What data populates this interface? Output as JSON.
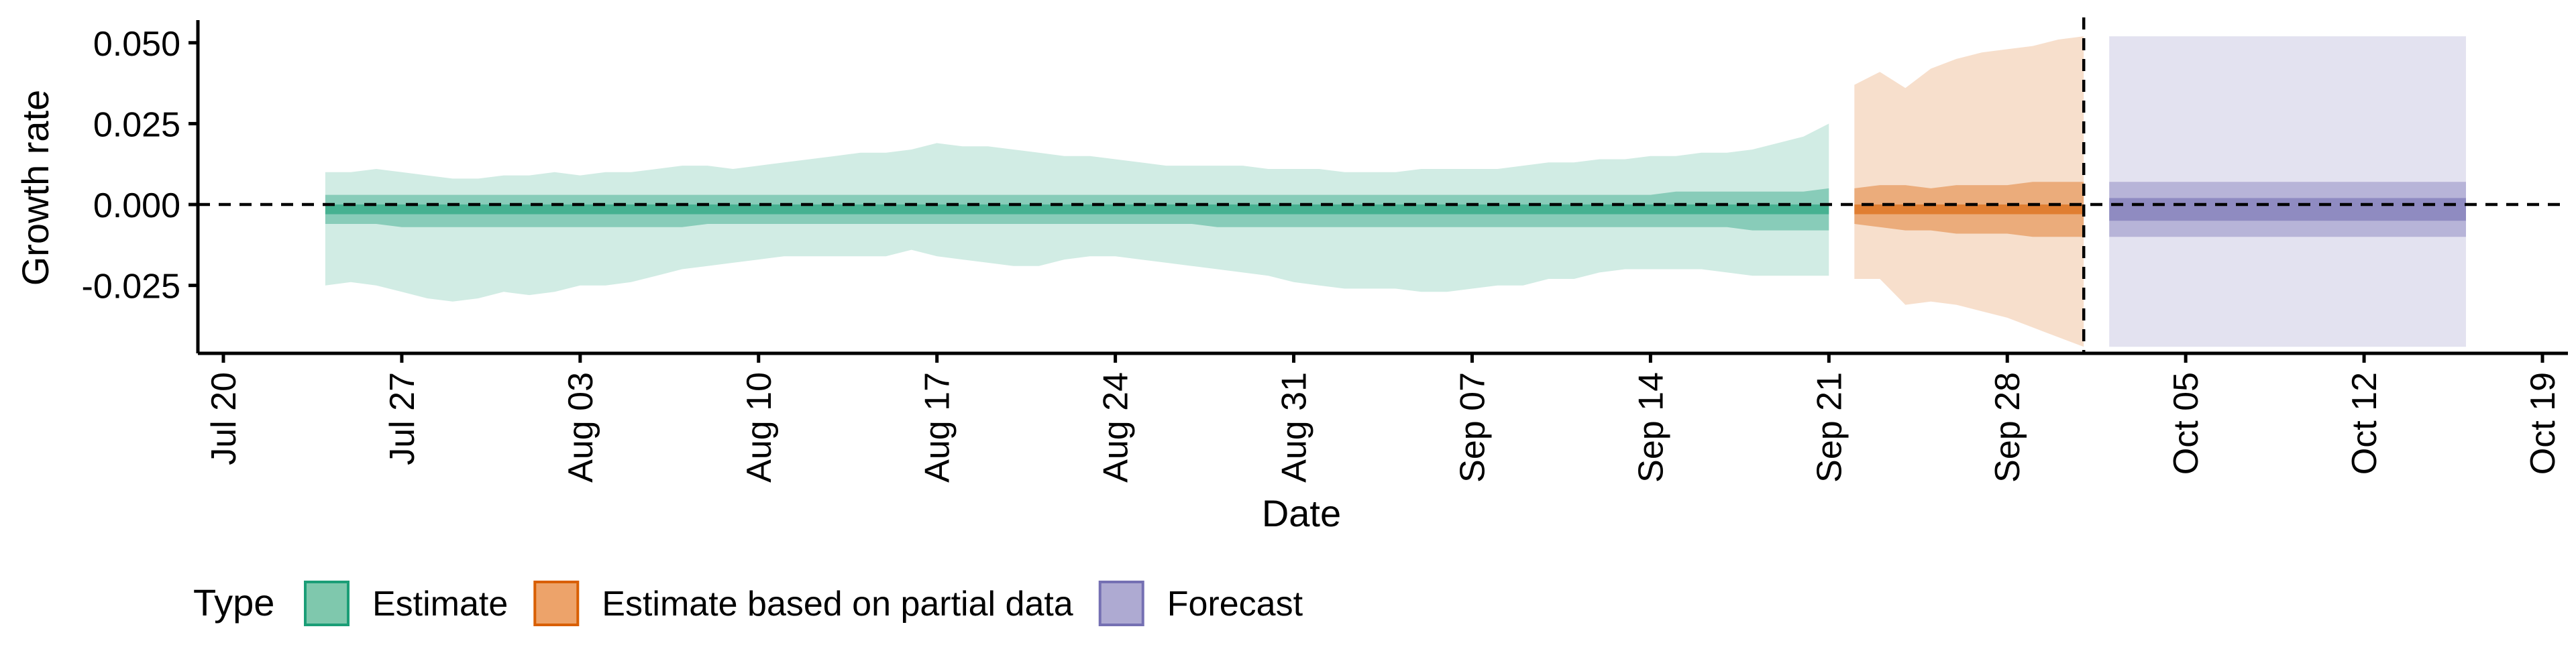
{
  "chart_data": {
    "type": "area",
    "xlabel": "Date",
    "ylabel": "Growth rate",
    "xlim": [
      "2020-07-19",
      "2020-10-20"
    ],
    "ylim": [
      -0.046,
      0.057
    ],
    "x_ticks": [
      "2020-07-20",
      "2020-07-27",
      "2020-08-03",
      "2020-08-10",
      "2020-08-17",
      "2020-08-24",
      "2020-08-31",
      "2020-09-07",
      "2020-09-14",
      "2020-09-21",
      "2020-09-28",
      "2020-10-05",
      "2020-10-12",
      "2020-10-19"
    ],
    "x_tick_labels": [
      "Jul 20",
      "Jul 27",
      "Aug 03",
      "Aug 10",
      "Aug 17",
      "Aug 24",
      "Aug 31",
      "Sep 07",
      "Sep 14",
      "Sep 21",
      "Sep 28",
      "Oct 05",
      "Oct 12",
      "Oct 19"
    ],
    "y_ticks": [
      -0.025,
      0.0,
      0.025,
      0.05
    ],
    "y_tick_labels": [
      "-0.025",
      "0.000",
      "0.025",
      "0.050"
    ],
    "reference_lines": {
      "horizontal_y": 0.0,
      "vertical_x": "2020-10-01"
    },
    "grid": false,
    "legend": {
      "position": "bottom-left",
      "title": "Type",
      "entries": [
        {
          "label": "Estimate",
          "fill": "#7fc8ad",
          "stroke": "#1b9e77"
        },
        {
          "label": "Estimate based on partial data",
          "fill": "#eda36a",
          "stroke": "#d95f02"
        },
        {
          "label": "Forecast",
          "fill": "#aeaad2",
          "stroke": "#7570b3"
        }
      ]
    },
    "band_opacity": {
      "outer_90": 0.2,
      "mid_50": 0.4,
      "inner_20": 0.6
    },
    "series": [
      {
        "name": "Estimate",
        "color": "#1b9e77",
        "x": [
          "2020-07-24",
          "2020-07-25",
          "2020-07-26",
          "2020-07-27",
          "2020-07-28",
          "2020-07-29",
          "2020-07-30",
          "2020-07-31",
          "2020-08-01",
          "2020-08-02",
          "2020-08-03",
          "2020-08-04",
          "2020-08-05",
          "2020-08-06",
          "2020-08-07",
          "2020-08-08",
          "2020-08-09",
          "2020-08-10",
          "2020-08-11",
          "2020-08-12",
          "2020-08-13",
          "2020-08-14",
          "2020-08-15",
          "2020-08-16",
          "2020-08-17",
          "2020-08-18",
          "2020-08-19",
          "2020-08-20",
          "2020-08-21",
          "2020-08-22",
          "2020-08-23",
          "2020-08-24",
          "2020-08-25",
          "2020-08-26",
          "2020-08-27",
          "2020-08-28",
          "2020-08-29",
          "2020-08-30",
          "2020-08-31",
          "2020-09-01",
          "2020-09-02",
          "2020-09-03",
          "2020-09-04",
          "2020-09-05",
          "2020-09-06",
          "2020-09-07",
          "2020-09-08",
          "2020-09-09",
          "2020-09-10",
          "2020-09-11",
          "2020-09-12",
          "2020-09-13",
          "2020-09-14",
          "2020-09-15",
          "2020-09-16",
          "2020-09-17",
          "2020-09-18",
          "2020-09-19",
          "2020-09-20",
          "2020-09-21"
        ],
        "lower_90": [
          -0.025,
          -0.024,
          -0.025,
          -0.027,
          -0.029,
          -0.03,
          -0.029,
          -0.027,
          -0.028,
          -0.027,
          -0.025,
          -0.025,
          -0.024,
          -0.022,
          -0.02,
          -0.019,
          -0.018,
          -0.017,
          -0.016,
          -0.016,
          -0.016,
          -0.016,
          -0.016,
          -0.014,
          -0.016,
          -0.017,
          -0.018,
          -0.019,
          -0.019,
          -0.017,
          -0.016,
          -0.016,
          -0.017,
          -0.018,
          -0.019,
          -0.02,
          -0.021,
          -0.022,
          -0.024,
          -0.025,
          -0.026,
          -0.026,
          -0.026,
          -0.027,
          -0.027,
          -0.026,
          -0.025,
          -0.025,
          -0.023,
          -0.023,
          -0.021,
          -0.02,
          -0.02,
          -0.02,
          -0.02,
          -0.021,
          -0.022,
          -0.022,
          -0.022,
          -0.022
        ],
        "upper_90": [
          0.01,
          0.01,
          0.011,
          0.01,
          0.009,
          0.008,
          0.008,
          0.009,
          0.009,
          0.01,
          0.009,
          0.01,
          0.01,
          0.011,
          0.012,
          0.012,
          0.011,
          0.012,
          0.013,
          0.014,
          0.015,
          0.016,
          0.016,
          0.017,
          0.019,
          0.018,
          0.018,
          0.017,
          0.016,
          0.015,
          0.015,
          0.014,
          0.013,
          0.012,
          0.012,
          0.012,
          0.012,
          0.011,
          0.011,
          0.011,
          0.01,
          0.01,
          0.01,
          0.011,
          0.011,
          0.011,
          0.011,
          0.012,
          0.013,
          0.013,
          0.014,
          0.014,
          0.015,
          0.015,
          0.016,
          0.016,
          0.017,
          0.019,
          0.021,
          0.025
        ],
        "lower_50": [
          -0.006,
          -0.006,
          -0.006,
          -0.007,
          -0.007,
          -0.007,
          -0.007,
          -0.007,
          -0.007,
          -0.007,
          -0.007,
          -0.007,
          -0.007,
          -0.007,
          -0.007,
          -0.006,
          -0.006,
          -0.006,
          -0.006,
          -0.006,
          -0.006,
          -0.006,
          -0.006,
          -0.006,
          -0.006,
          -0.006,
          -0.006,
          -0.006,
          -0.006,
          -0.006,
          -0.006,
          -0.006,
          -0.006,
          -0.006,
          -0.006,
          -0.007,
          -0.007,
          -0.007,
          -0.007,
          -0.007,
          -0.007,
          -0.007,
          -0.007,
          -0.007,
          -0.007,
          -0.007,
          -0.007,
          -0.007,
          -0.007,
          -0.007,
          -0.007,
          -0.007,
          -0.007,
          -0.007,
          -0.007,
          -0.007,
          -0.008,
          -0.008,
          -0.008,
          -0.008
        ],
        "upper_50": [
          0.003,
          0.003,
          0.003,
          0.003,
          0.003,
          0.003,
          0.003,
          0.003,
          0.003,
          0.003,
          0.003,
          0.003,
          0.003,
          0.003,
          0.003,
          0.003,
          0.003,
          0.003,
          0.003,
          0.003,
          0.003,
          0.003,
          0.003,
          0.003,
          0.003,
          0.003,
          0.003,
          0.003,
          0.003,
          0.003,
          0.003,
          0.003,
          0.003,
          0.003,
          0.003,
          0.003,
          0.003,
          0.003,
          0.003,
          0.003,
          0.003,
          0.003,
          0.003,
          0.003,
          0.003,
          0.003,
          0.003,
          0.003,
          0.003,
          0.003,
          0.003,
          0.003,
          0.003,
          0.004,
          0.004,
          0.004,
          0.004,
          0.004,
          0.004,
          0.005
        ],
        "lower_20": [
          -0.003,
          -0.003,
          -0.003,
          -0.003,
          -0.003,
          -0.003,
          -0.003,
          -0.003,
          -0.003,
          -0.003,
          -0.003,
          -0.003,
          -0.003,
          -0.003,
          -0.003,
          -0.003,
          -0.003,
          -0.003,
          -0.003,
          -0.003,
          -0.003,
          -0.003,
          -0.003,
          -0.003,
          -0.003,
          -0.003,
          -0.003,
          -0.003,
          -0.003,
          -0.003,
          -0.003,
          -0.003,
          -0.003,
          -0.003,
          -0.003,
          -0.003,
          -0.003,
          -0.003,
          -0.003,
          -0.003,
          -0.003,
          -0.003,
          -0.003,
          -0.003,
          -0.003,
          -0.003,
          -0.003,
          -0.003,
          -0.003,
          -0.003,
          -0.003,
          -0.003,
          -0.003,
          -0.003,
          -0.003,
          -0.003,
          -0.003,
          -0.003,
          -0.003,
          -0.003
        ],
        "upper_20": [
          0.0,
          0.0,
          0.0,
          0.0,
          0.0,
          0.0,
          0.0,
          0.0,
          0.0,
          0.0,
          0.0,
          0.0,
          0.0,
          0.0,
          0.0,
          0.0,
          0.0,
          0.0,
          0.0,
          0.0,
          0.0,
          0.0,
          0.0,
          0.0,
          0.0,
          0.0,
          0.0,
          0.0,
          0.0,
          0.0,
          0.0,
          0.0,
          0.0,
          0.0,
          0.0,
          0.0,
          0.0,
          0.0,
          0.0,
          0.0,
          0.0,
          0.0,
          0.0,
          0.0,
          0.0,
          0.0,
          0.0,
          0.0,
          0.0,
          0.0,
          0.0,
          0.0,
          0.0,
          0.0,
          0.0,
          0.0,
          0.0,
          0.0,
          0.0,
          0.0
        ]
      },
      {
        "name": "Estimate based on partial data",
        "color": "#d95f02",
        "x": [
          "2020-09-22",
          "2020-09-23",
          "2020-09-24",
          "2020-09-25",
          "2020-09-26",
          "2020-09-27",
          "2020-09-28",
          "2020-09-29",
          "2020-09-30",
          "2020-10-01"
        ],
        "lower_90": [
          -0.023,
          -0.023,
          -0.031,
          -0.03,
          -0.031,
          -0.033,
          -0.035,
          -0.038,
          -0.041,
          -0.044
        ],
        "upper_90": [
          0.037,
          0.041,
          0.036,
          0.042,
          0.045,
          0.047,
          0.048,
          0.049,
          0.051,
          0.052
        ],
        "lower_50": [
          -0.006,
          -0.007,
          -0.008,
          -0.008,
          -0.009,
          -0.009,
          -0.009,
          -0.01,
          -0.01,
          -0.01
        ],
        "upper_50": [
          0.005,
          0.006,
          0.006,
          0.005,
          0.006,
          0.006,
          0.006,
          0.007,
          0.007,
          0.007
        ],
        "lower_20": [
          -0.003,
          -0.003,
          -0.003,
          -0.003,
          -0.003,
          -0.003,
          -0.003,
          -0.003,
          -0.003,
          -0.003
        ],
        "upper_20": [
          0.0,
          0.0,
          0.0,
          0.0,
          0.0,
          0.0,
          0.0,
          0.0,
          0.0,
          0.0
        ]
      },
      {
        "name": "Forecast",
        "color": "#7570b3",
        "x": [
          "2020-10-02",
          "2020-10-16"
        ],
        "lower_90": [
          -0.044,
          -0.044
        ],
        "upper_90": [
          0.052,
          0.052
        ],
        "lower_50": [
          -0.01,
          -0.01
        ],
        "upper_50": [
          0.007,
          0.007
        ],
        "lower_20": [
          -0.005,
          -0.005
        ],
        "upper_20": [
          0.002,
          0.002
        ]
      }
    ]
  }
}
